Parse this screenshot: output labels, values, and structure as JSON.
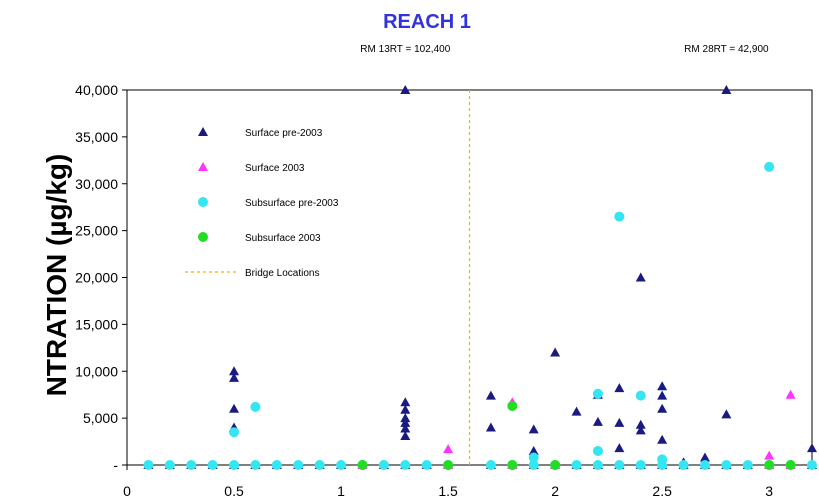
{
  "chart_data": {
    "type": "scatter",
    "title": "REACH 1",
    "ylabel": "NTRATION (µg/kg)",
    "xlabel": "",
    "xlim": [
      0,
      3.2
    ],
    "ylim": [
      0,
      40000
    ],
    "x_ticks": [
      0,
      0.5,
      1,
      1.5,
      2,
      2.5,
      3
    ],
    "x_tick_labels": [
      "0",
      "0.5",
      "1",
      "1.5",
      "2",
      "2.5",
      "3"
    ],
    "y_ticks": [
      0,
      5000,
      10000,
      15000,
      20000,
      25000,
      30000,
      35000,
      40000
    ],
    "y_tick_labels": [
      "-",
      "5,000",
      "10,000",
      "15,000",
      "20,000",
      "25,000",
      "30,000",
      "35,000",
      "40,000"
    ],
    "grid": false,
    "legend_position": "top-left",
    "annotations": [
      {
        "text": "RM 13RT = 102,400",
        "x": 1.3
      },
      {
        "text": "RM 28RT = 42,900",
        "x": 2.8
      }
    ],
    "bridge": {
      "name": "Bridge Locations",
      "x": 1.6,
      "color": "#f0b400"
    },
    "series": [
      {
        "name": "Surface pre-2003",
        "marker": "triangle",
        "color": "#1a1a80",
        "points": [
          [
            0.1,
            0
          ],
          [
            0.2,
            0
          ],
          [
            0.3,
            0
          ],
          [
            0.4,
            0
          ],
          [
            0.5,
            0
          ],
          [
            0.6,
            0
          ],
          [
            0.7,
            0
          ],
          [
            0.8,
            0
          ],
          [
            0.9,
            0
          ],
          [
            1.0,
            0
          ],
          [
            1.1,
            0
          ],
          [
            1.2,
            0
          ],
          [
            1.3,
            0
          ],
          [
            1.4,
            0
          ],
          [
            1.5,
            0
          ],
          [
            1.7,
            0
          ],
          [
            1.8,
            0
          ],
          [
            1.9,
            0
          ],
          [
            2.0,
            0
          ],
          [
            2.1,
            0
          ],
          [
            2.2,
            0
          ],
          [
            2.3,
            0
          ],
          [
            2.4,
            0
          ],
          [
            2.5,
            0
          ],
          [
            2.6,
            0
          ],
          [
            2.7,
            0
          ],
          [
            2.8,
            0
          ],
          [
            2.9,
            0
          ],
          [
            3.0,
            0
          ],
          [
            3.1,
            0
          ],
          [
            3.2,
            0
          ],
          [
            0.5,
            10000
          ],
          [
            0.5,
            9300
          ],
          [
            0.5,
            6000
          ],
          [
            0.5,
            4000
          ],
          [
            1.3,
            40000
          ],
          [
            1.3,
            6700
          ],
          [
            1.3,
            5900
          ],
          [
            1.3,
            5000
          ],
          [
            1.3,
            4500
          ],
          [
            1.3,
            3900
          ],
          [
            1.3,
            3100
          ],
          [
            1.7,
            7400
          ],
          [
            1.7,
            4000
          ],
          [
            1.9,
            3800
          ],
          [
            1.9,
            1500
          ],
          [
            2.0,
            12000
          ],
          [
            2.1,
            5700
          ],
          [
            2.2,
            7500
          ],
          [
            2.2,
            4600
          ],
          [
            2.3,
            8200
          ],
          [
            2.3,
            4500
          ],
          [
            2.3,
            1800
          ],
          [
            2.4,
            20000
          ],
          [
            2.4,
            4300
          ],
          [
            2.4,
            3700
          ],
          [
            2.5,
            8400
          ],
          [
            2.5,
            7400
          ],
          [
            2.5,
            6000
          ],
          [
            2.5,
            2700
          ],
          [
            2.6,
            300
          ],
          [
            2.7,
            800
          ],
          [
            2.8,
            40000
          ],
          [
            2.8,
            5400
          ],
          [
            3.2,
            1800
          ]
        ]
      },
      {
        "name": "Surface 2003",
        "marker": "triangle",
        "color": "#ff33ff",
        "points": [
          [
            1.1,
            0
          ],
          [
            1.5,
            0
          ],
          [
            1.5,
            1700
          ],
          [
            1.8,
            6700
          ],
          [
            1.8,
            0
          ],
          [
            2.0,
            0
          ],
          [
            3.0,
            1000
          ],
          [
            3.0,
            0
          ],
          [
            3.1,
            7500
          ],
          [
            3.1,
            0
          ]
        ]
      },
      {
        "name": "Subsurface pre-2003",
        "marker": "circle",
        "color": "#33e6f2",
        "points": [
          [
            0.1,
            0
          ],
          [
            0.2,
            0
          ],
          [
            0.3,
            0
          ],
          [
            0.4,
            0
          ],
          [
            0.5,
            0
          ],
          [
            0.6,
            0
          ],
          [
            0.7,
            0
          ],
          [
            0.8,
            0
          ],
          [
            0.9,
            0
          ],
          [
            1.0,
            0
          ],
          [
            1.1,
            0
          ],
          [
            1.2,
            0
          ],
          [
            1.3,
            0
          ],
          [
            1.4,
            0
          ],
          [
            1.5,
            0
          ],
          [
            1.7,
            0
          ],
          [
            1.8,
            0
          ],
          [
            1.9,
            0
          ],
          [
            2.0,
            0
          ],
          [
            2.1,
            0
          ],
          [
            2.2,
            0
          ],
          [
            2.3,
            0
          ],
          [
            2.4,
            0
          ],
          [
            2.5,
            0
          ],
          [
            2.6,
            0
          ],
          [
            2.7,
            0
          ],
          [
            2.8,
            0
          ],
          [
            2.9,
            0
          ],
          [
            3.0,
            0
          ],
          [
            3.1,
            0
          ],
          [
            3.2,
            0
          ],
          [
            0.5,
            3500
          ],
          [
            0.6,
            6200
          ],
          [
            1.9,
            800
          ],
          [
            2.2,
            7600
          ],
          [
            2.2,
            1500
          ],
          [
            2.3,
            26500
          ],
          [
            2.4,
            7400
          ],
          [
            2.5,
            600
          ],
          [
            3.0,
            31800
          ]
        ]
      },
      {
        "name": "Subsurface 2003",
        "marker": "circle",
        "color": "#22dd22",
        "points": [
          [
            1.1,
            0
          ],
          [
            1.5,
            0
          ],
          [
            1.8,
            6300
          ],
          [
            1.8,
            0
          ],
          [
            2.0,
            0
          ],
          [
            3.0,
            0
          ],
          [
            3.1,
            0
          ]
        ]
      }
    ]
  }
}
